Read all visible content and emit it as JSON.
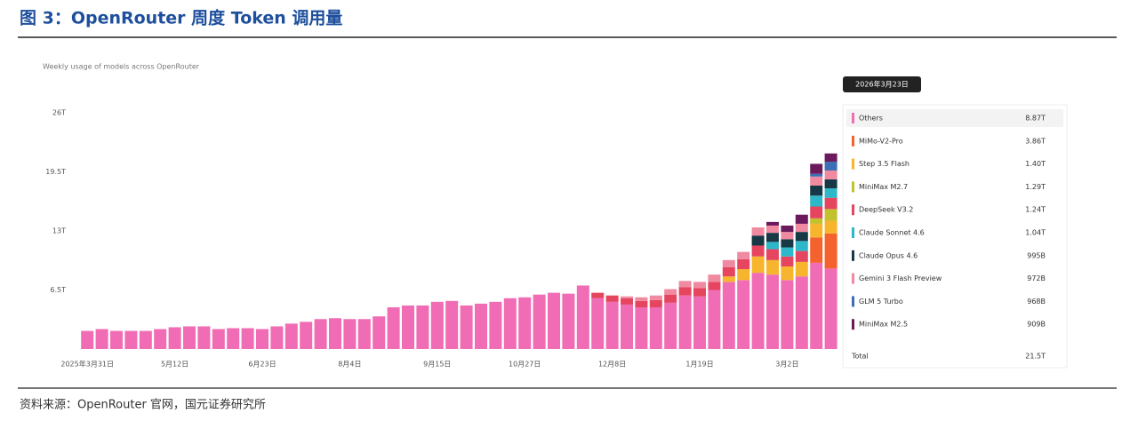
{
  "header": {
    "title": "图 3：OpenRouter 周度 Token 调用量"
  },
  "footer": {
    "source": "资料来源：OpenRouter 官网，国元证券研究所"
  },
  "chart_data": {
    "type": "stacked_bar",
    "subtitle": "Weekly usage of models across OpenRouter",
    "ylim": [
      0,
      27
    ],
    "yticks": [
      {
        "value": 6.5,
        "label": "6.5T"
      },
      {
        "value": 13,
        "label": "13T"
      },
      {
        "value": 19.5,
        "label": "19.5T"
      },
      {
        "value": 26,
        "label": "26T"
      }
    ],
    "grid": false,
    "categories": [
      "2025年3月31日",
      null,
      null,
      null,
      null,
      null,
      "5月12日",
      null,
      null,
      null,
      null,
      null,
      "6月23日",
      null,
      null,
      null,
      null,
      null,
      "8月4日",
      null,
      null,
      null,
      null,
      null,
      "9月15日",
      null,
      null,
      null,
      null,
      null,
      "10月27日",
      null,
      null,
      null,
      null,
      null,
      "12月8日",
      null,
      null,
      null,
      null,
      null,
      "1月19日",
      null,
      null,
      null,
      null,
      null,
      "3月2日",
      null,
      null,
      null
    ],
    "series": [
      {
        "name": "Others",
        "color": "#f06cb4",
        "values": [
          2.0,
          2.2,
          2.0,
          2.0,
          2.0,
          2.2,
          2.4,
          2.5,
          2.5,
          2.2,
          2.3,
          2.3,
          2.2,
          2.5,
          2.8,
          3.0,
          3.3,
          3.4,
          3.3,
          3.3,
          3.6,
          4.6,
          4.8,
          4.8,
          5.2,
          5.3,
          4.8,
          5.0,
          5.2,
          5.6,
          5.7,
          6.0,
          6.2,
          6.1,
          7.0,
          5.6,
          5.2,
          4.9,
          4.6,
          4.6,
          5.1,
          5.9,
          5.8,
          6.5,
          7.4,
          7.6,
          8.4,
          8.2,
          7.6,
          8.0,
          9.5,
          8.87
        ]
      },
      {
        "name": "MiMo-V2-Pro",
        "color": "#f4622e",
        "values": [
          0,
          0,
          0,
          0,
          0,
          0,
          0,
          0,
          0,
          0,
          0,
          0,
          0,
          0,
          0,
          0,
          0,
          0,
          0,
          0,
          0,
          0,
          0,
          0,
          0,
          0,
          0,
          0,
          0,
          0,
          0,
          0,
          0,
          0,
          0,
          0,
          0,
          0,
          0,
          0,
          0,
          0,
          0,
          0,
          0,
          0,
          0,
          0,
          0,
          0,
          2.8,
          3.86
        ]
      },
      {
        "name": "Step 3.5 Flash",
        "color": "#f6b52c",
        "values": [
          0,
          0,
          0,
          0,
          0,
          0,
          0,
          0,
          0,
          0,
          0,
          0,
          0,
          0,
          0,
          0,
          0,
          0,
          0,
          0,
          0,
          0,
          0,
          0,
          0,
          0,
          0,
          0,
          0,
          0,
          0,
          0,
          0,
          0,
          0,
          0,
          0,
          0,
          0,
          0,
          0,
          0,
          0,
          0,
          0.6,
          1.2,
          1.8,
          1.6,
          1.5,
          1.6,
          1.5,
          1.4
        ]
      },
      {
        "name": "MiniMax M2.7",
        "color": "#c3c12c",
        "values": [
          0,
          0,
          0,
          0,
          0,
          0,
          0,
          0,
          0,
          0,
          0,
          0,
          0,
          0,
          0,
          0,
          0,
          0,
          0,
          0,
          0,
          0,
          0,
          0,
          0,
          0,
          0,
          0,
          0,
          0,
          0,
          0,
          0,
          0,
          0,
          0,
          0,
          0,
          0,
          0,
          0,
          0,
          0,
          0,
          0,
          0,
          0,
          0,
          0,
          0,
          0.6,
          1.29
        ]
      },
      {
        "name": "DeepSeek V3.2",
        "color": "#e5455e",
        "values": [
          0,
          0,
          0,
          0,
          0,
          0,
          0,
          0,
          0,
          0,
          0,
          0,
          0,
          0,
          0,
          0,
          0,
          0,
          0,
          0,
          0,
          0,
          0,
          0,
          0,
          0,
          0,
          0,
          0,
          0,
          0,
          0,
          0,
          0,
          0,
          0.6,
          0.7,
          0.7,
          0.7,
          0.8,
          0.9,
          0.9,
          0.9,
          0.9,
          1.0,
          1.1,
          1.2,
          1.2,
          1.1,
          1.2,
          1.3,
          1.24
        ]
      },
      {
        "name": "Claude Sonnet 4.6",
        "color": "#2eb7c8",
        "values": [
          0,
          0,
          0,
          0,
          0,
          0,
          0,
          0,
          0,
          0,
          0,
          0,
          0,
          0,
          0,
          0,
          0,
          0,
          0,
          0,
          0,
          0,
          0,
          0,
          0,
          0,
          0,
          0,
          0,
          0,
          0,
          0,
          0,
          0,
          0,
          0,
          0,
          0,
          0,
          0,
          0,
          0,
          0,
          0,
          0,
          0,
          0,
          0.8,
          1.0,
          1.1,
          1.2,
          1.04
        ]
      },
      {
        "name": "Claude Opus 4.6",
        "color": "#173946",
        "values": [
          0,
          0,
          0,
          0,
          0,
          0,
          0,
          0,
          0,
          0,
          0,
          0,
          0,
          0,
          0,
          0,
          0,
          0,
          0,
          0,
          0,
          0,
          0,
          0,
          0,
          0,
          0,
          0,
          0,
          0,
          0,
          0,
          0,
          0,
          0,
          0,
          0,
          0,
          0,
          0,
          0,
          0,
          0,
          0,
          0,
          0,
          1.1,
          1.0,
          0.9,
          1.0,
          1.1,
          0.995
        ]
      },
      {
        "name": "Gemini 3 Flash Preview",
        "color": "#f08aa0",
        "values": [
          0,
          0,
          0,
          0,
          0,
          0,
          0,
          0,
          0,
          0,
          0,
          0,
          0,
          0,
          0,
          0,
          0,
          0,
          0,
          0,
          0,
          0,
          0,
          0,
          0,
          0,
          0,
          0,
          0,
          0,
          0,
          0,
          0,
          0,
          0,
          0,
          0,
          0.2,
          0.4,
          0.5,
          0.6,
          0.7,
          0.7,
          0.8,
          0.8,
          0.8,
          0.9,
          0.8,
          0.8,
          0.9,
          1.0,
          0.972
        ]
      },
      {
        "name": "GLM 5 Turbo",
        "color": "#3b6fb6",
        "values": [
          0,
          0,
          0,
          0,
          0,
          0,
          0,
          0,
          0,
          0,
          0,
          0,
          0,
          0,
          0,
          0,
          0,
          0,
          0,
          0,
          0,
          0,
          0,
          0,
          0,
          0,
          0,
          0,
          0,
          0,
          0,
          0,
          0,
          0,
          0,
          0,
          0,
          0,
          0,
          0,
          0,
          0,
          0,
          0,
          0,
          0,
          0,
          0,
          0,
          0,
          0.3,
          0.968
        ]
      },
      {
        "name": "MiniMax M2.5",
        "color": "#6b1b5c",
        "values": [
          0,
          0,
          0,
          0,
          0,
          0,
          0,
          0,
          0,
          0,
          0,
          0,
          0,
          0,
          0,
          0,
          0,
          0,
          0,
          0,
          0,
          0,
          0,
          0,
          0,
          0,
          0,
          0,
          0,
          0,
          0,
          0,
          0,
          0,
          0,
          0,
          0,
          0,
          0,
          0,
          0,
          0,
          0,
          0,
          0,
          0,
          0,
          0.4,
          0.7,
          1.0,
          1.1,
          0.909
        ]
      }
    ],
    "tooltip": {
      "date": "2026年3月23日",
      "value_labels": [
        "8.87T",
        "3.86T",
        "1.40T",
        "1.29T",
        "1.24T",
        "1.04T",
        "995B",
        "972B",
        "968B",
        "909B"
      ],
      "total_name": "Total",
      "total": 21.5,
      "total_label": "21.5T"
    }
  }
}
